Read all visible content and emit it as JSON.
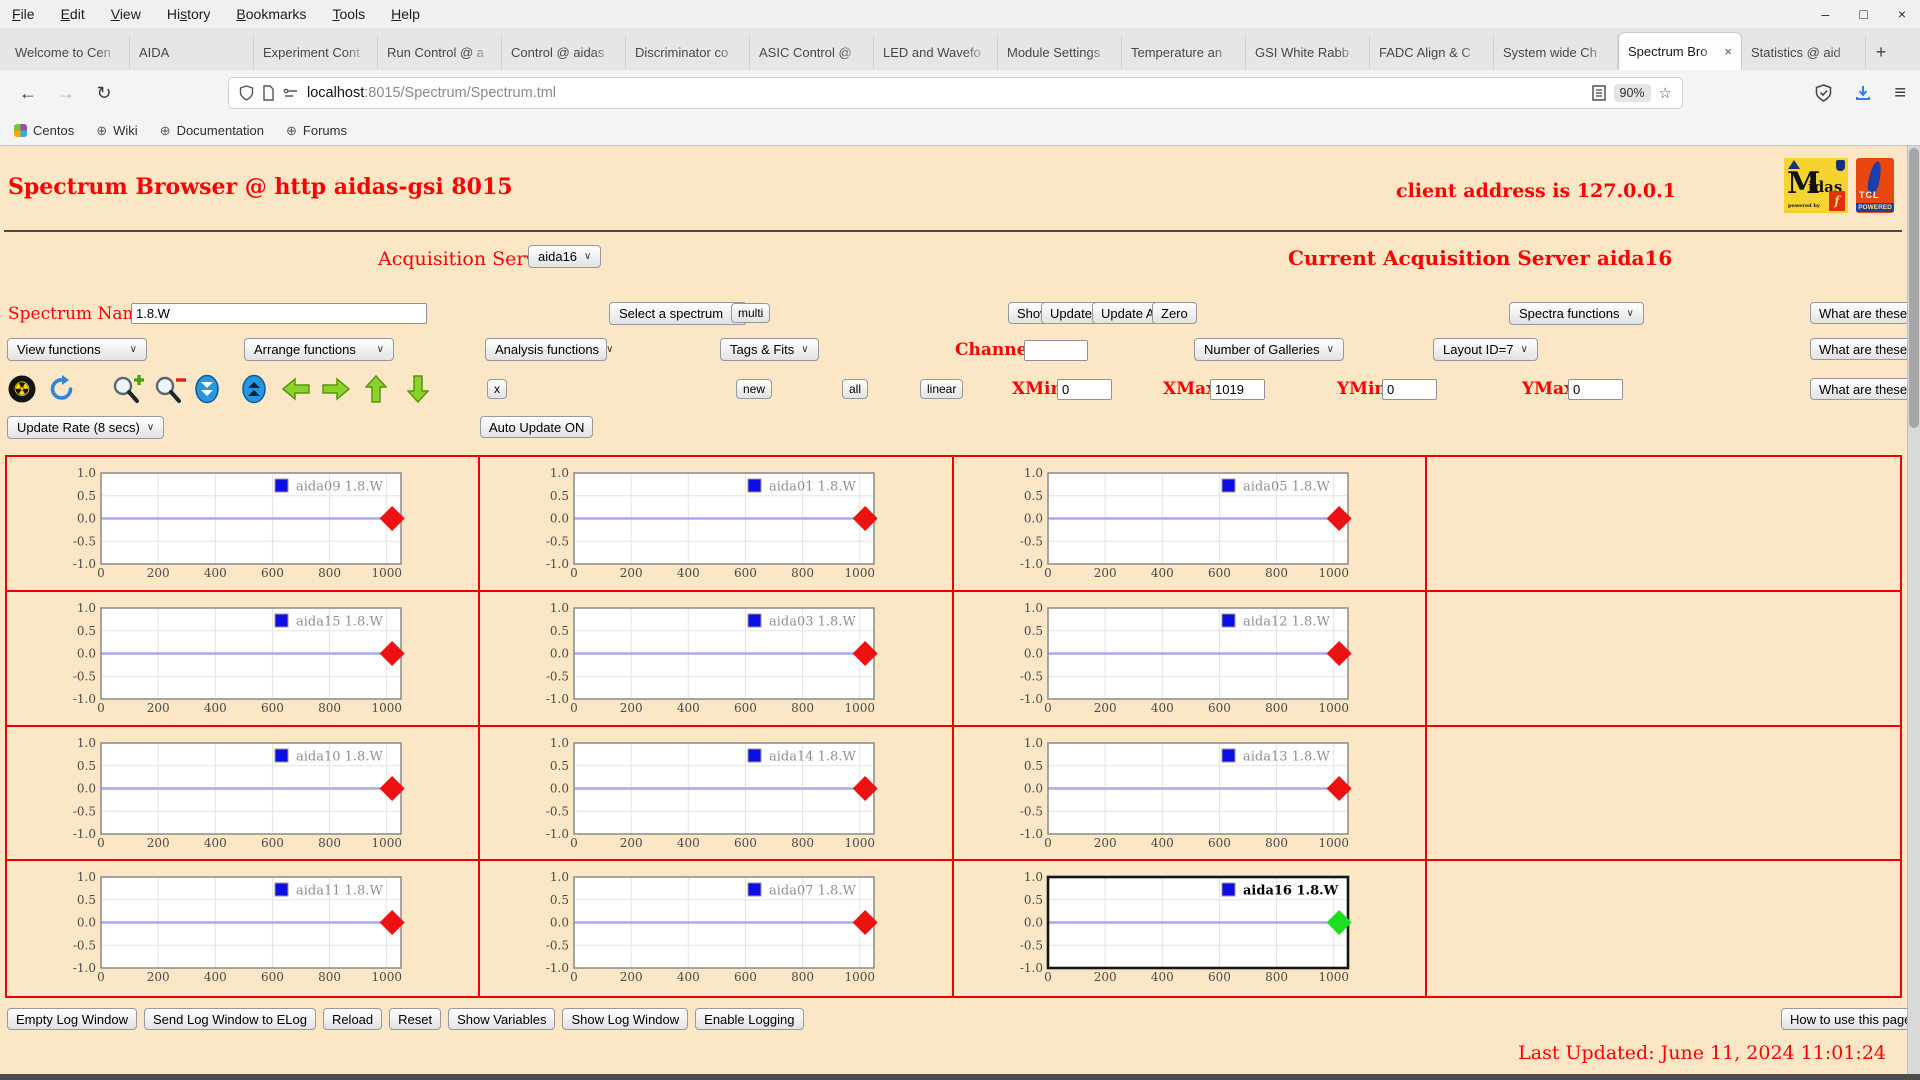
{
  "browser": {
    "menu": [
      {
        "label": "File",
        "u": 0
      },
      {
        "label": "Edit",
        "u": 0
      },
      {
        "label": "View",
        "u": 0
      },
      {
        "label": "History",
        "u": 2
      },
      {
        "label": "Bookmarks",
        "u": 0
      },
      {
        "label": "Tools",
        "u": 0
      },
      {
        "label": "Help",
        "u": 0
      }
    ],
    "window_controls": {
      "minimize": "–",
      "maximize": "□",
      "close": "×"
    },
    "tabs": [
      {
        "label": "Welcome to Cen",
        "active": false
      },
      {
        "label": "AIDA",
        "active": false
      },
      {
        "label": "Experiment Cont",
        "active": false
      },
      {
        "label": "Run Control @ a",
        "active": false
      },
      {
        "label": "Control @ aidas",
        "active": false
      },
      {
        "label": "Discriminator co",
        "active": false
      },
      {
        "label": "ASIC Control @",
        "active": false
      },
      {
        "label": "LED and Wavefo",
        "active": false
      },
      {
        "label": "Module Settings",
        "active": false
      },
      {
        "label": "Temperature an",
        "active": false
      },
      {
        "label": "GSI White Rabb",
        "active": false
      },
      {
        "label": "FADC Align & C",
        "active": false
      },
      {
        "label": "System wide Ch",
        "active": false
      },
      {
        "label": "Spectrum Bro",
        "active": true
      },
      {
        "label": "Statistics @ aid",
        "active": false
      }
    ],
    "tab_close_glyph": "×",
    "new_tab": "+",
    "nav": {
      "back": "←",
      "forward": "→",
      "reload": "↻",
      "reader": "≡",
      "star": "☆",
      "menu": "≡"
    },
    "url": {
      "host": "localhost",
      "rest": ":8015/Spectrum/Spectrum.tml",
      "zoom_badge": "90%"
    },
    "bookmarks": [
      {
        "label": "Centos",
        "icon": "centos"
      },
      {
        "label": "Wiki",
        "icon": "globe"
      },
      {
        "label": "Documentation",
        "icon": "globe"
      },
      {
        "label": "Forums",
        "icon": "globe"
      }
    ],
    "globe_glyph": "⊕"
  },
  "header": {
    "title": "Spectrum Browser @ http aidas-gsi 8015",
    "client_address": "client address is 127.0.0.1",
    "logo_midas_big": "M",
    "logo_midas_rest": "idas",
    "logo_midas_sub": "powered by",
    "logo_midas_tcl": "f",
    "logo_tcl_text": "TCL",
    "logo_tcl_pow": "POWERED"
  },
  "server_row": {
    "label": "Acquisition Servers",
    "value": "aida16",
    "current": "Current Acquisition Server aida16"
  },
  "controls": {
    "spectrum_name_label": "Spectrum Name:",
    "spectrum_name_value": "1.8.W",
    "select_spectrum": "Select a spectrum",
    "multi": "multi",
    "show": "Show",
    "update": "Update",
    "update_all": "Update All",
    "zero": "Zero",
    "spectra_functions": "Spectra functions",
    "what_are_these": "What are these?",
    "view_functions": "View functions",
    "arrange_functions": "Arrange functions",
    "analysis_functions": "Analysis functions",
    "tags_fits": "Tags & Fits",
    "channel_label": "Channel:",
    "channel_value": "",
    "number_of_galleries": "Number of Galleries",
    "layout_id": "Layout ID=7",
    "x": "x",
    "new": "new",
    "all": "all",
    "linear": "linear",
    "xmin_label": "XMin",
    "xmin_value": "0",
    "xmax_label": "XMax",
    "xmax_value": "1019",
    "ymin_label": "YMin",
    "ymin_value": "0",
    "ymax_label": "YMax",
    "ymax_value": "0",
    "update_rate": "Update Rate (8 secs)",
    "auto_update": "Auto Update ON"
  },
  "footer": {
    "buttons": [
      "Empty Log Window",
      "Send Log Window to ELog",
      "Reload",
      "Reset",
      "Show Variables",
      "Show Log Window",
      "Enable Logging"
    ],
    "how_to": "How to use this page",
    "last_updated": "Last Updated: June 11, 2024 11:01:24"
  },
  "chart_data": {
    "type": "line",
    "x_ticks": [
      "0",
      "200",
      "400",
      "600",
      "800",
      "1000"
    ],
    "x_tick_values": [
      0,
      200,
      400,
      600,
      800,
      1000
    ],
    "y_ticks": [
      "1.0",
      "0.5",
      "0.0",
      "-0.5",
      "-1.0"
    ],
    "y_tick_values": [
      1,
      0.5,
      0,
      -0.5,
      -1
    ],
    "xlim": [
      0,
      1050
    ],
    "ylim": [
      -1,
      1
    ],
    "grid": true,
    "legend_position": "top-right",
    "series_suffix": "1.8.W",
    "line_value": 0,
    "marker_x": 1019,
    "marker_y": 0,
    "galleries": [
      [
        "aida09",
        "aida01",
        "aida05",
        null
      ],
      [
        "aida15",
        "aida03",
        "aida12",
        null
      ],
      [
        "aida10",
        "aida14",
        "aida13",
        null
      ],
      [
        "aida11",
        "aida07",
        "aida16",
        null
      ]
    ],
    "selected": "aida16",
    "colors": {
      "line": "#a9a9f2",
      "marker": "#ee1111",
      "selected_marker": "#1fdd1f",
      "legend_swatch": "#0d0de8",
      "grid_border": "#ee0000",
      "plot_border": "#8a8a8a",
      "selected_plot_border": "#151515",
      "gridline": "#e3e3e3"
    }
  }
}
